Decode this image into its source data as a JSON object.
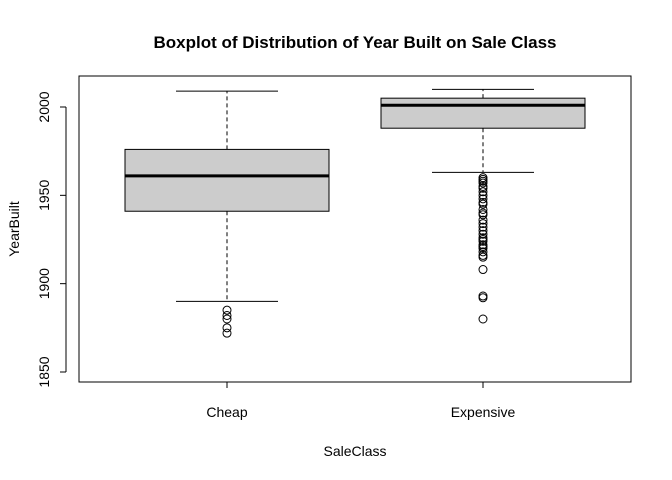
{
  "chart_data": {
    "type": "boxplot",
    "title": "Boxplot of Distribution of Year Built on Sale Class",
    "xlabel": "SaleClass",
    "ylabel": "YearBuilt",
    "categories": [
      "Cheap",
      "Expensive"
    ],
    "ylim": [
      1845,
      2020
    ],
    "yticks": [
      1850,
      1900,
      1950,
      2000
    ],
    "grid": false,
    "boxes": [
      {
        "category": "Cheap",
        "whisker_low": 1890,
        "q1": 1941,
        "median": 1961,
        "q3": 1976,
        "whisker_high": 2009,
        "outliers": [
          1885,
          1882,
          1880,
          1875,
          1872
        ]
      },
      {
        "category": "Expensive",
        "whisker_low": 1963,
        "q1": 1988,
        "median": 2001,
        "q3": 2005,
        "whisker_high": 2010,
        "outliers": [
          1960,
          1959,
          1958,
          1957,
          1955,
          1954,
          1952,
          1950,
          1948,
          1946,
          1945,
          1942,
          1940,
          1939,
          1936,
          1934,
          1932,
          1930,
          1928,
          1926,
          1925,
          1924,
          1922,
          1921,
          1920,
          1918,
          1916,
          1915,
          1908,
          1893,
          1892,
          1880
        ]
      }
    ]
  }
}
